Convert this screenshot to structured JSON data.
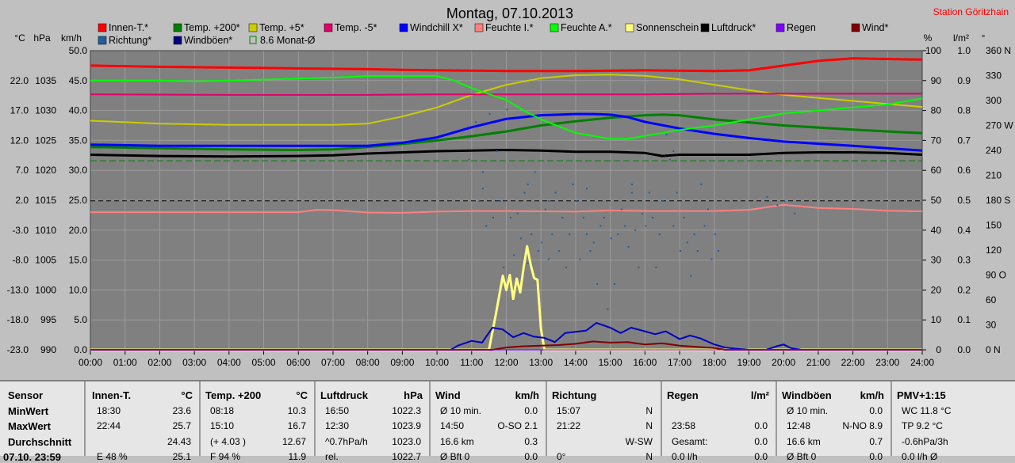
{
  "chart_data": {
    "type": "line",
    "title": "Montag, 07.10.2013",
    "station": "Station Göritzhain",
    "x_ticks": [
      "00:00",
      "01:00",
      "02:00",
      "03:00",
      "04:00",
      "05:00",
      "06:00",
      "07:00",
      "08:00",
      "09:00",
      "10:00",
      "11:00",
      "12:00",
      "13:00",
      "14:00",
      "15:00",
      "16:00",
      "17:00",
      "18:00",
      "19:00",
      "20:00",
      "21:00",
      "22:00",
      "23:00",
      "24:00"
    ],
    "units": {
      "temp": "°C",
      "pressure": "hPa",
      "wind": "km/h",
      "humidity": "%",
      "rain": "l/m²",
      "direction": "°"
    },
    "axes": {
      "temp": {
        "ticks": [
          "22.0",
          "17.0",
          "12.0",
          "7.0",
          "2.0",
          "-3.0",
          "-8.0",
          "-13.0",
          "-18.0",
          "-23.0"
        ],
        "range": [
          -23.0,
          27.0
        ]
      },
      "pressure": {
        "ticks": [
          "1035",
          "1030",
          "1025",
          "1020",
          "1015",
          "1010",
          "1005",
          "1000",
          "995",
          "990"
        ],
        "range": [
          990,
          1040
        ]
      },
      "wind": {
        "ticks": [
          "50.0",
          "45.0",
          "40.0",
          "35.0",
          "30.0",
          "25.0",
          "20.0",
          "15.0",
          "10.0",
          "5.0",
          "0.0"
        ],
        "range": [
          0,
          50
        ]
      },
      "humidity": {
        "ticks": [
          "100",
          "90",
          "80",
          "70",
          "60",
          "50",
          "40",
          "30",
          "20",
          "10",
          "0"
        ],
        "range": [
          0,
          100
        ]
      },
      "rain": {
        "ticks": [
          "1.0",
          "0.9",
          "0.8",
          "0.7",
          "0.6",
          "0.5",
          "0.4",
          "0.3",
          "0.2",
          "0.1",
          "0.0"
        ],
        "range": [
          0,
          1.0
        ]
      },
      "direction": {
        "ticks": [
          "360 N",
          "330",
          "300",
          "270 W",
          "240",
          "210",
          "180 S",
          "150",
          "120",
          "90 O",
          "60",
          "30",
          "0 N"
        ],
        "range": [
          0,
          360
        ]
      }
    },
    "legend": [
      {
        "name": "Innen-T.*",
        "color": "#ff0000"
      },
      {
        "name": "Temp. +200*",
        "color": "#008000"
      },
      {
        "name": "Temp. +5*",
        "color": "#cccc00"
      },
      {
        "name": "Temp. -5*",
        "color": "#e0006a"
      },
      {
        "name": "Windchill X*",
        "color": "#0000ff"
      },
      {
        "name": "Feuchte I.*",
        "color": "#ff8080"
      },
      {
        "name": "Feuchte A.*",
        "color": "#00ff00"
      },
      {
        "name": "Sonnenschein",
        "color": "#ffff80"
      },
      {
        "name": "Luftdruck*",
        "color": "#000000"
      },
      {
        "name": "Regen",
        "color": "#8000ff"
      },
      {
        "name": "Wind*",
        "color": "#800000"
      },
      {
        "name": "Richtung*",
        "color": "#1f5f9f"
      },
      {
        "name": "Windböen*",
        "color": "#000080"
      },
      {
        "name": "8.6 Monat-Ø",
        "color": "#008000"
      }
    ],
    "series": [
      {
        "key": "innen",
        "unit": "°C",
        "color": "#ff0000",
        "width": 3,
        "x": [
          0,
          2,
          5,
          8,
          9,
          10,
          12,
          14,
          16,
          18,
          19,
          20,
          21,
          22,
          24
        ],
        "y": [
          24.5,
          24.3,
          24.1,
          23.9,
          23.8,
          23.7,
          23.6,
          23.6,
          23.7,
          23.6,
          23.7,
          24.5,
          25.3,
          25.7,
          25.5
        ]
      },
      {
        "key": "temp200",
        "unit": "°C",
        "color": "#008000",
        "width": 3,
        "x": [
          0,
          2,
          4,
          6,
          7,
          8,
          9,
          10,
          11,
          12,
          13,
          14,
          15,
          16,
          16.5,
          17,
          18,
          20,
          22,
          24
        ],
        "y": [
          10.9,
          10.7,
          10.5,
          10.4,
          10.5,
          10.9,
          11.4,
          12.0,
          12.7,
          13.5,
          14.5,
          15.2,
          15.8,
          16.2,
          16.3,
          16.2,
          15.5,
          14.5,
          13.8,
          13.2
        ]
      },
      {
        "key": "temp5",
        "unit": "°C",
        "color": "#cccc00",
        "width": 2,
        "x": [
          0,
          2,
          4,
          6,
          7,
          8,
          9,
          10,
          11,
          12,
          13,
          14,
          15,
          16,
          17,
          18,
          19,
          20,
          22,
          24
        ],
        "y": [
          15.3,
          14.8,
          14.6,
          14.6,
          14.6,
          14.8,
          16.0,
          17.5,
          19.6,
          21.3,
          22.4,
          22.9,
          23.0,
          22.8,
          22.2,
          21.3,
          20.4,
          19.6,
          18.6,
          17.6
        ]
      },
      {
        "key": "tempm5",
        "unit": "°C",
        "color": "#e0006a",
        "width": 2,
        "x": [
          0,
          4,
          8,
          10,
          12,
          14,
          16,
          18,
          20,
          22,
          24
        ],
        "y": [
          19.7,
          19.6,
          19.6,
          19.7,
          19.7,
          19.7,
          19.7,
          19.8,
          19.8,
          19.8,
          19.8
        ]
      },
      {
        "key": "windchill",
        "unit": "°C",
        "color": "#0000ff",
        "width": 3,
        "x": [
          0,
          2,
          4,
          6,
          8,
          9,
          10,
          11,
          12,
          13,
          14,
          14.5,
          15,
          15.5,
          16,
          17,
          18,
          19,
          20,
          22,
          24
        ],
        "y": [
          11.3,
          11.1,
          11.1,
          11.1,
          11.1,
          11.6,
          12.5,
          14.2,
          15.6,
          16.2,
          16.4,
          16.4,
          16.3,
          15.9,
          15.1,
          14.0,
          13.1,
          12.4,
          11.8,
          11.1,
          10.3
        ]
      },
      {
        "key": "feuchte_i",
        "unit": "%",
        "color": "#ff8080",
        "width": 2,
        "x": [
          0,
          6,
          6.5,
          7,
          8,
          9,
          10,
          11,
          12,
          13,
          14,
          15,
          16,
          17,
          18,
          19,
          20,
          21,
          22,
          23,
          24
        ],
        "y": [
          46,
          46,
          46.8,
          46.7,
          45.9,
          45.8,
          46.2,
          46.4,
          46.4,
          46.3,
          46.2,
          46.6,
          46.4,
          46.4,
          46.4,
          46.8,
          48.5,
          47.4,
          47.1,
          46.5,
          46.3
        ]
      },
      {
        "key": "feuchte_a",
        "unit": "%",
        "color": "#00ff00",
        "width": 2,
        "x": [
          0,
          2,
          3,
          4,
          7,
          8,
          10,
          10.5,
          11,
          12,
          12.5,
          13,
          14,
          15,
          15.5,
          16,
          17,
          18,
          19,
          20,
          21,
          22,
          23,
          24
        ],
        "y": [
          90,
          90,
          89.7,
          90,
          91,
          91.5,
          91.5,
          90,
          87.5,
          83.5,
          80,
          77,
          72.5,
          70.5,
          70.5,
          71.5,
          73.5,
          75,
          77,
          79,
          80,
          81,
          82,
          84
        ]
      },
      {
        "key": "luftdruck",
        "unit": "hPa",
        "color": "#000000",
        "width": 3,
        "x": [
          0,
          2,
          4,
          6,
          7,
          8,
          9,
          10,
          11,
          12,
          13,
          14,
          15,
          16,
          16.5,
          17,
          18,
          19,
          20,
          21,
          22,
          23,
          24
        ],
        "y": [
          1022.6,
          1022.4,
          1022.3,
          1022.4,
          1022.5,
          1022.8,
          1023.0,
          1023.2,
          1023.3,
          1023.4,
          1023.3,
          1023.1,
          1023.1,
          1022.9,
          1022.4,
          1022.6,
          1022.6,
          1022.6,
          1022.9,
          1023.0,
          1023.0,
          1022.9,
          1022.6
        ]
      },
      {
        "key": "sonnenschein",
        "unit": "km/h",
        "color": "#ffff80",
        "width": 3,
        "x": [
          0,
          11.5,
          11.7,
          11.9,
          12.0,
          12.1,
          12.2,
          12.3,
          12.4,
          12.5,
          12.6,
          12.7,
          12.8,
          12.9,
          13.0,
          13.1,
          24
        ],
        "y": [
          0,
          0,
          6,
          12.4,
          10,
          12.5,
          8.5,
          11.9,
          9.6,
          13.8,
          17.3,
          14.3,
          12,
          11.7,
          3.5,
          0,
          0
        ]
      },
      {
        "key": "windboen",
        "unit": "km/h",
        "color": "#0000c0",
        "width": 2,
        "x": [
          0,
          10.4,
          10.6,
          11.0,
          11.3,
          11.6,
          11.9,
          12.2,
          12.5,
          12.8,
          13.1,
          13.4,
          13.7,
          14.0,
          14.3,
          14.6,
          15.0,
          15.3,
          15.6,
          16.0,
          16.3,
          16.6,
          17.0,
          17.3,
          17.6,
          18.0,
          18.3,
          18.6,
          19.0,
          19.5,
          19.8,
          20.0,
          20.2,
          20.5,
          24
        ],
        "y": [
          0,
          0,
          0.7,
          1.5,
          1.2,
          3.7,
          3.4,
          2.1,
          2.8,
          2.2,
          2.0,
          1.3,
          2.8,
          3.0,
          3.2,
          4.5,
          3.7,
          2.8,
          3.7,
          3.1,
          2.6,
          3.1,
          1.8,
          2.4,
          1.9,
          0.9,
          0.4,
          0.2,
          0,
          0,
          0.6,
          0.9,
          0.3,
          0,
          0
        ]
      },
      {
        "key": "wind",
        "unit": "km/h",
        "color": "#800000",
        "width": 2,
        "x": [
          0,
          11.6,
          12.0,
          12.5,
          13.0,
          13.5,
          14.0,
          14.5,
          15.0,
          15.5,
          16.0,
          16.5,
          17.0,
          17.5,
          18.0,
          18.3,
          24
        ],
        "y": [
          0,
          0,
          0.4,
          0.6,
          0.7,
          0.8,
          1.0,
          1.4,
          1.2,
          1.3,
          0.9,
          1.1,
          0.7,
          0.5,
          0.3,
          0,
          0
        ]
      },
      {
        "key": "regen",
        "unit": "km/h",
        "color": "#8000ff",
        "width": 1,
        "x": [
          0,
          24
        ],
        "y": [
          0,
          0
        ]
      },
      {
        "key": "ref_dashed",
        "unit": "km/h",
        "color": "#000000",
        "width": 1,
        "dash": "6,4",
        "x": [
          0,
          24
        ],
        "y": [
          24.9,
          24.9
        ]
      },
      {
        "key": "monat_avg",
        "unit": "°C",
        "color": "#008000",
        "width": 1,
        "dash": "8,4",
        "x": [
          0,
          24
        ],
        "y": [
          8.6,
          8.6
        ]
      }
    ],
    "richtung_points": [
      [
        10.9,
        230
      ],
      [
        11.1,
        275
      ],
      [
        11.2,
        180
      ],
      [
        11.3,
        215
      ],
      [
        11.4,
        150
      ],
      [
        11.5,
        285
      ],
      [
        11.6,
        160
      ],
      [
        11.7,
        240
      ],
      [
        11.8,
        180
      ],
      [
        11.9,
        100
      ],
      [
        12.0,
        290
      ],
      [
        12.1,
        160
      ],
      [
        12.2,
        115
      ],
      [
        12.3,
        165
      ],
      [
        12.4,
        135
      ],
      [
        12.5,
        190
      ],
      [
        12.6,
        105
      ],
      [
        12.7,
        140
      ],
      [
        12.8,
        215
      ],
      [
        12.9,
        120
      ],
      [
        13.0,
        130
      ],
      [
        13.1,
        170
      ],
      [
        13.2,
        110
      ],
      [
        13.3,
        140
      ],
      [
        13.4,
        190
      ],
      [
        13.5,
        120
      ],
      [
        13.6,
        160
      ],
      [
        13.7,
        100
      ],
      [
        13.8,
        140
      ],
      [
        13.9,
        200
      ],
      [
        14.0,
        180
      ],
      [
        14.1,
        110
      ],
      [
        14.2,
        160
      ],
      [
        14.3,
        140
      ],
      [
        14.4,
        120
      ],
      [
        14.5,
        130
      ],
      [
        14.6,
        80
      ],
      [
        14.7,
        150
      ],
      [
        14.8,
        160
      ],
      [
        14.9,
        50
      ],
      [
        15.0,
        135
      ],
      [
        15.1,
        80
      ],
      [
        15.2,
        140
      ],
      [
        15.3,
        170
      ],
      [
        15.4,
        150
      ],
      [
        15.5,
        125
      ],
      [
        15.6,
        200
      ],
      [
        15.7,
        145
      ],
      [
        15.8,
        100
      ],
      [
        15.9,
        165
      ],
      [
        16.0,
        150
      ],
      [
        16.1,
        190
      ],
      [
        16.2,
        160
      ],
      [
        16.3,
        100
      ],
      [
        16.4,
        140
      ],
      [
        16.5,
        180
      ],
      [
        16.6,
        260
      ],
      [
        16.7,
        230
      ],
      [
        16.8,
        150
      ],
      [
        16.9,
        190
      ],
      [
        17.0,
        120
      ],
      [
        17.1,
        160
      ],
      [
        17.2,
        130
      ],
      [
        17.3,
        90
      ],
      [
        17.4,
        140
      ],
      [
        17.5,
        120
      ],
      [
        17.6,
        200
      ],
      [
        17.7,
        150
      ],
      [
        17.8,
        170
      ],
      [
        17.9,
        110
      ],
      [
        18.0,
        140
      ],
      [
        18.1,
        120
      ],
      [
        19.5,
        185
      ],
      [
        19.8,
        175
      ],
      [
        20.0,
        180
      ],
      [
        20.3,
        165
      ],
      [
        11.3,
        195
      ],
      [
        12.6,
        200
      ],
      [
        14.3,
        195
      ],
      [
        16.8,
        240
      ],
      [
        15.6,
        190
      ],
      [
        13.2,
        180
      ]
    ]
  },
  "table": {
    "row_labels": {
      "sensor": "Sensor",
      "min": "MinWert",
      "max": "MaxWert",
      "avg": "Durchschnitt",
      "last": "07.10. 23:59"
    },
    "columns": [
      {
        "title": "Innen-T.",
        "unit": "°C",
        "rows": [
          [
            "18:30",
            "23.6"
          ],
          [
            "22:44",
            "25.7"
          ],
          [
            "",
            "24.43"
          ],
          [
            "E 48 %",
            "25.1"
          ]
        ]
      },
      {
        "title": "Temp. +200",
        "unit": "°C",
        "rows": [
          [
            "08:18",
            "10.3"
          ],
          [
            "15:10",
            "16.7"
          ],
          [
            "(+ 4.03 )",
            "12.67"
          ],
          [
            "F 94 %",
            "11.9"
          ]
        ]
      },
      {
        "title": "Luftdruck",
        "unit": "hPa",
        "rows": [
          [
            "16:50",
            "1022.3"
          ],
          [
            "12:30",
            "1023.9"
          ],
          [
            "^0.7hPa/h",
            "1023.0"
          ],
          [
            "rel.",
            "1022.7"
          ]
        ]
      },
      {
        "title": "Wind",
        "unit": "km/h",
        "rows": [
          [
            "Ø 10 min.",
            "0.0"
          ],
          [
            "14:50",
            "O-SO 2.1"
          ],
          [
            "16.6 km",
            "0.3"
          ],
          [
            "Ø Bft 0",
            "0.0"
          ]
        ]
      },
      {
        "title": "Richtung",
        "unit": "",
        "rows": [
          [
            "15:07",
            "N"
          ],
          [
            "21:22",
            "N"
          ],
          [
            "",
            "W-SW"
          ],
          [
            "0°",
            "N"
          ]
        ]
      },
      {
        "title": "Regen",
        "unit": "l/m²",
        "rows": [
          [
            "",
            ""
          ],
          [
            "23:58",
            "0.0"
          ],
          [
            "Gesamt:",
            "0.0"
          ],
          [
            "0.0 l/h",
            "0.0"
          ]
        ]
      },
      {
        "title": "Windböen",
        "unit": "km/h",
        "rows": [
          [
            "Ø 10 min.",
            "0.0"
          ],
          [
            "12:48",
            "N-NO 8.9"
          ],
          [
            "16.6 km",
            "0.7"
          ],
          [
            "Ø Bft 0",
            "0.0"
          ]
        ]
      },
      {
        "title": "PMV+1:15",
        "unit": "",
        "rows": [
          [
            "WC 11.8 °C",
            ""
          ],
          [
            "TP 9.2 °C",
            ""
          ],
          [
            "-0.6hPa/3h",
            ""
          ],
          [
            "0.0 l/h Ø",
            ""
          ]
        ]
      }
    ]
  }
}
